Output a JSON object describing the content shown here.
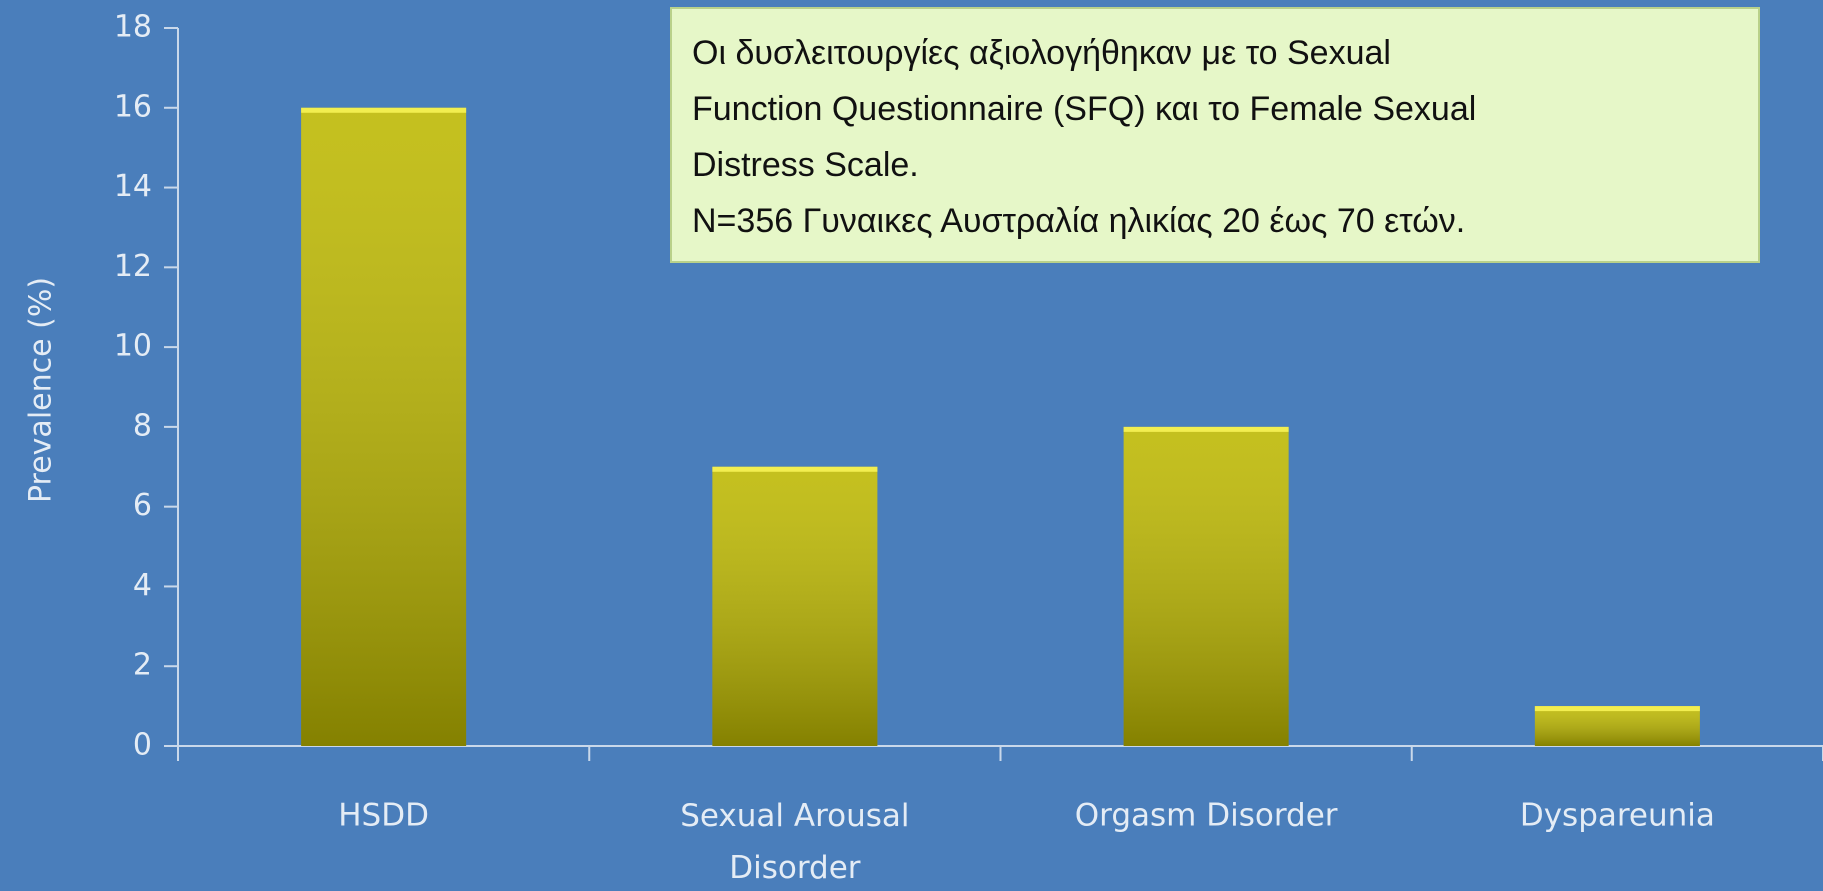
{
  "chart_data": {
    "type": "bar",
    "categories": [
      "HSDD",
      "Sexual Arousal Disorder",
      "Orgasm Disorder",
      "Dyspareunia"
    ],
    "values": [
      16,
      7,
      8,
      1
    ],
    "color": "#bdb800",
    "ylabel": "Prevalence (%)",
    "ylim": [
      0,
      18
    ],
    "yticks": [
      0,
      2,
      4,
      6,
      8,
      10,
      12,
      14,
      16,
      18
    ],
    "annotation": [
      "Οι δυσλειτουργίες αξιολογήθηκαν με το Sexual",
      "Function Questionnaire (SFQ) και το Female Sexual",
      "Distress Scale.",
      "N=356 Γυναικες Αυστραλία ηλικίας 20 έως 70 ετών."
    ]
  }
}
